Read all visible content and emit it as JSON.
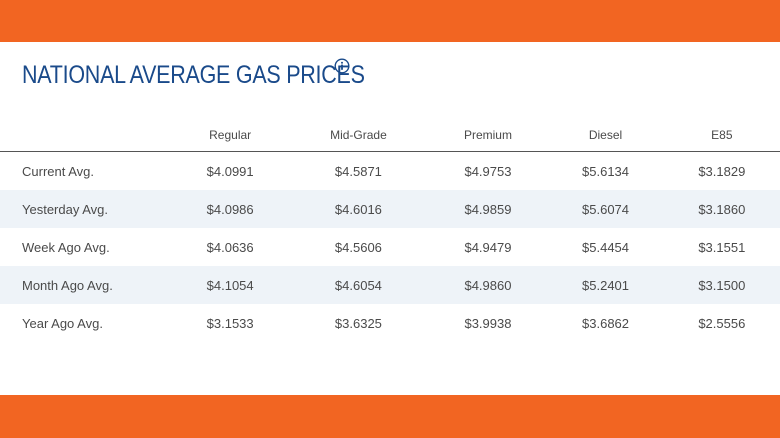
{
  "colors": {
    "accent_bar": "#f26522",
    "title": "#1a4a8a",
    "row_stripe": "#eef3f8"
  },
  "title": "NATIONAL AVERAGE GAS PRICES",
  "title_icon": "info-icon",
  "table": {
    "headers": [
      "",
      "Regular",
      "Mid-Grade",
      "Premium",
      "Diesel",
      "E85"
    ],
    "rows": [
      {
        "label": "Current Avg.",
        "values": [
          "$4.0991",
          "$4.5871",
          "$4.9753",
          "$5.6134",
          "$3.1829"
        ]
      },
      {
        "label": "Yesterday Avg.",
        "values": [
          "$4.0986",
          "$4.6016",
          "$4.9859",
          "$5.6074",
          "$3.1860"
        ]
      },
      {
        "label": "Week Ago Avg.",
        "values": [
          "$4.0636",
          "$4.5606",
          "$4.9479",
          "$5.4454",
          "$3.1551"
        ]
      },
      {
        "label": "Month Ago Avg.",
        "values": [
          "$4.1054",
          "$4.6054",
          "$4.9860",
          "$5.2401",
          "$3.1500"
        ]
      },
      {
        "label": "Year Ago Avg.",
        "values": [
          "$3.1533",
          "$3.6325",
          "$3.9938",
          "$3.6862",
          "$2.5556"
        ]
      }
    ]
  }
}
